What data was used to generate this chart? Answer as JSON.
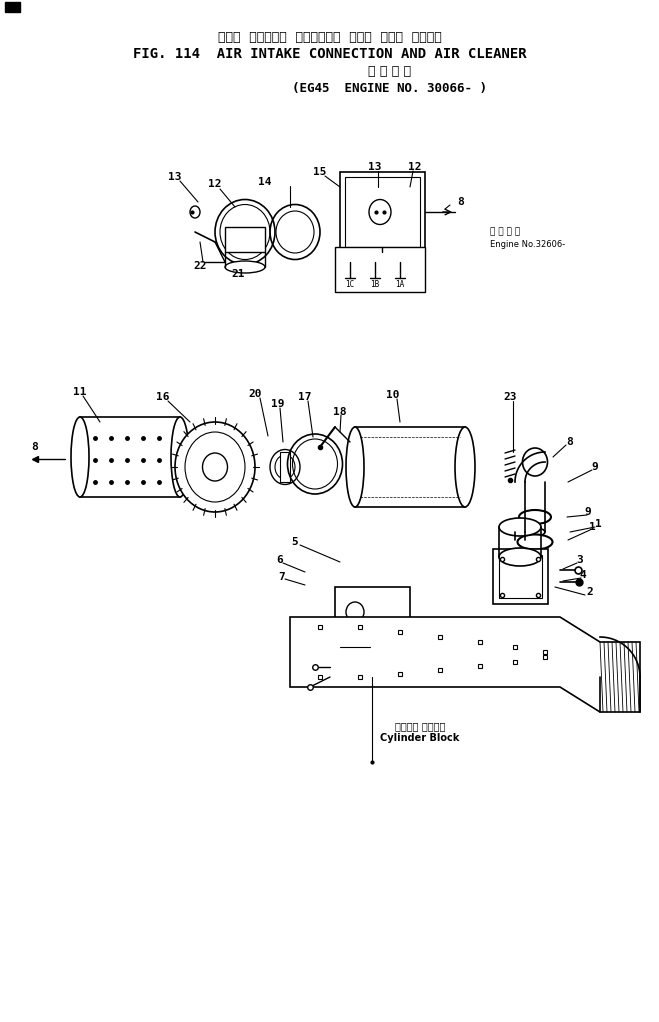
{
  "title_japanese": "エアー  インテーク  コネクション  および  エアー  クリーナ",
  "title_english": "FIG. 114  AIR INTAKE CONNECTION AND AIR CLEANER",
  "subtitle_japanese": "適 用 号 機",
  "subtitle_english": "(EG45  ENGINE NO. 30066- )",
  "bg_color": "#ffffff",
  "line_color": "#000000",
  "fig_size": [
    6.59,
    10.22
  ],
  "dpi": 100,
  "parts_label_color": "#000000",
  "note_engine": "Engine No.32606-",
  "note_cylinder": "シリンダ ブロック\nCylinder Block"
}
